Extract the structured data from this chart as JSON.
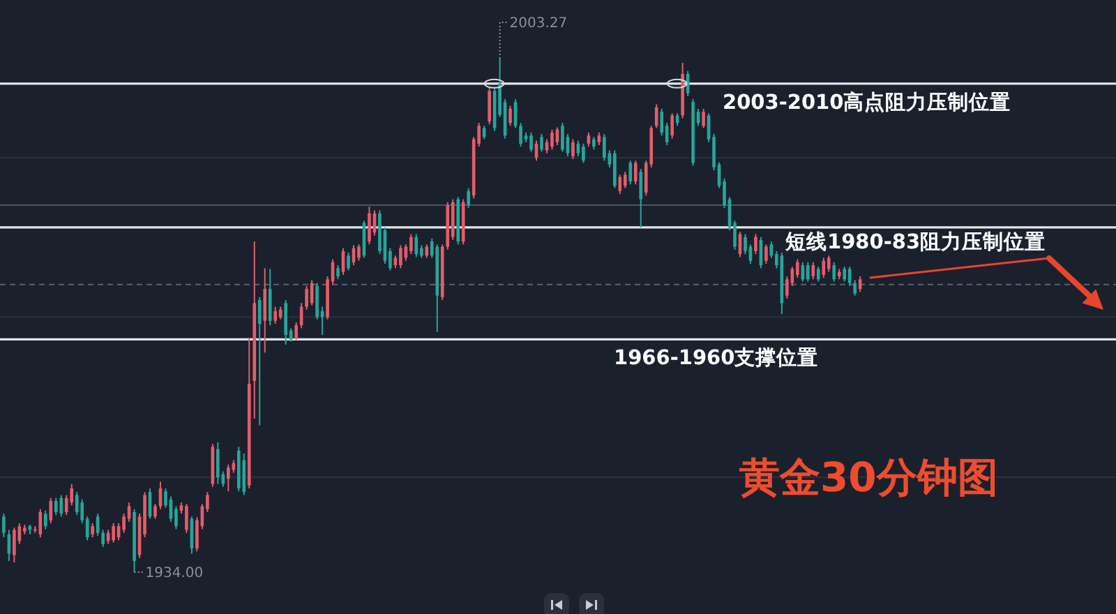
{
  "chart_data": {
    "type": "candlestick",
    "title": "黄金30分钟图",
    "categories": [
      null,
      null,
      null,
      null,
      null,
      null,
      null,
      null,
      null,
      null,
      null,
      null,
      null,
      null,
      null,
      null,
      null,
      null,
      null,
      null,
      null,
      null,
      null,
      null,
      null,
      null,
      null,
      null,
      null,
      null,
      null,
      null,
      null,
      null,
      null,
      null,
      null,
      null,
      null,
      null,
      null,
      null,
      null,
      null,
      null,
      null,
      null,
      null,
      null,
      null,
      null,
      null,
      null,
      null,
      null,
      null,
      null,
      null,
      null,
      null,
      null,
      null,
      null,
      null,
      null,
      null,
      null,
      null,
      null,
      null,
      null,
      null,
      null,
      null,
      null,
      null,
      null,
      null,
      null,
      null,
      null,
      null,
      null,
      null,
      null,
      null,
      null,
      null,
      null,
      null,
      null,
      null,
      null,
      null,
      null,
      null,
      null,
      null,
      null,
      null,
      null,
      null,
      null,
      null,
      null,
      null,
      null,
      null,
      null,
      null,
      null,
      null,
      null,
      null,
      null,
      null,
      null,
      null,
      null,
      null,
      null,
      null,
      null,
      null,
      null,
      null,
      null,
      null,
      null,
      null,
      null,
      null,
      null,
      null,
      null,
      null,
      null,
      null,
      null,
      null,
      null,
      null,
      null,
      null,
      null,
      null,
      null,
      null,
      null,
      null,
      null,
      null,
      null,
      null,
      null,
      null,
      null,
      null,
      null,
      null,
      null,
      null,
      null,
      null,
      null
    ],
    "ohlc": [
      [
        1941.5,
        1941.9,
        1938.7,
        1939.3
      ],
      [
        1939.1,
        1939.7,
        1935.5,
        1936.5
      ],
      [
        1936.3,
        1940.0,
        1935.3,
        1939.7
      ],
      [
        1938.2,
        1940.6,
        1937.8,
        1940.2
      ],
      [
        1939.5,
        1940.4,
        1939.1,
        1940.0
      ],
      [
        1940.2,
        1940.4,
        1939.1,
        1939.7
      ],
      [
        1939.7,
        1940.2,
        1939.3,
        1939.8
      ],
      [
        1939.1,
        1942.5,
        1938.7,
        1942.1
      ],
      [
        1941.9,
        1942.3,
        1939.8,
        1940.2
      ],
      [
        1941.0,
        1944.0,
        1940.6,
        1943.6
      ],
      [
        1943.6,
        1944.0,
        1941.7,
        1942.1
      ],
      [
        1944.0,
        1944.4,
        1941.5,
        1941.9
      ],
      [
        1942.1,
        1944.4,
        1941.7,
        1944.0
      ],
      [
        1943.4,
        1945.9,
        1943.0,
        1945.3
      ],
      [
        1944.4,
        1944.8,
        1941.7,
        1942.1
      ],
      [
        1943.4,
        1943.8,
        1940.6,
        1941.0
      ],
      [
        1941.2,
        1941.5,
        1938.3,
        1938.7
      ],
      [
        1939.1,
        1940.6,
        1938.7,
        1940.2
      ],
      [
        1941.5,
        1941.9,
        1938.9,
        1939.3
      ],
      [
        1939.3,
        1939.7,
        1937.4,
        1937.8
      ],
      [
        1938.2,
        1939.7,
        1937.8,
        1939.3
      ],
      [
        1938.3,
        1940.6,
        1938.0,
        1940.2
      ],
      [
        1938.7,
        1940.6,
        1938.3,
        1940.2
      ],
      [
        1939.7,
        1941.9,
        1939.3,
        1941.5
      ],
      [
        1941.2,
        1943.4,
        1940.8,
        1942.9
      ],
      [
        1942.1,
        1942.5,
        1934.0,
        1935.5
      ],
      [
        1936.3,
        1941.9,
        1935.9,
        1941.5
      ],
      [
        1939.1,
        1944.8,
        1938.7,
        1944.4
      ],
      [
        1944.8,
        1945.3,
        1941.2,
        1941.5
      ],
      [
        1941.5,
        1943.2,
        1941.2,
        1942.9
      ],
      [
        1942.9,
        1946.2,
        1942.5,
        1945.3
      ],
      [
        1944.9,
        1945.3,
        1942.7,
        1943.0
      ],
      [
        1943.8,
        1944.2,
        1940.8,
        1941.2
      ],
      [
        1942.5,
        1942.9,
        1939.8,
        1940.2
      ],
      [
        1942.3,
        1943.4,
        1941.9,
        1943.0
      ],
      [
        1939.7,
        1943.2,
        1939.3,
        1942.9
      ],
      [
        1941.2,
        1941.5,
        1936.5,
        1937.2
      ],
      [
        1937.2,
        1941.4,
        1936.8,
        1941.0
      ],
      [
        1940.2,
        1943.2,
        1939.8,
        1942.9
      ],
      [
        1942.5,
        1944.8,
        1942.1,
        1944.4
      ],
      [
        1945.9,
        1951.3,
        1945.5,
        1950.9
      ],
      [
        1950.6,
        1951.5,
        1945.9,
        1946.8
      ],
      [
        1947.2,
        1947.6,
        1945.5,
        1945.9
      ],
      [
        1946.6,
        1948.5,
        1944.9,
        1948.1
      ],
      [
        1947.8,
        1949.1,
        1947.4,
        1948.7
      ],
      [
        1950.4,
        1950.9,
        1944.9,
        1945.3
      ],
      [
        1949.1,
        1950.0,
        1944.4,
        1944.8
      ],
      [
        1945.7,
        1965.6,
        1945.3,
        1959.4
      ],
      [
        1959.8,
        1978.6,
        1954.7,
        1970.3
      ],
      [
        1970.7,
        1971.1,
        1953.8,
        1967.5
      ],
      [
        1967.9,
        1975.0,
        1963.6,
        1972.2
      ],
      [
        1972.2,
        1974.9,
        1967.3,
        1967.9
      ],
      [
        1967.9,
        1969.8,
        1967.5,
        1969.2
      ],
      [
        1968.4,
        1969.8,
        1968.1,
        1969.4
      ],
      [
        1970.3,
        1970.7,
        1964.7,
        1966.0
      ],
      [
        1966.6,
        1966.9,
        1965.1,
        1965.4
      ],
      [
        1965.6,
        1967.7,
        1965.3,
        1967.3
      ],
      [
        1967.3,
        1970.3,
        1966.9,
        1969.8
      ],
      [
        1969.8,
        1972.6,
        1969.4,
        1972.2
      ],
      [
        1970.3,
        1973.4,
        1970.0,
        1973.0
      ],
      [
        1972.6,
        1973.0,
        1968.1,
        1968.4
      ],
      [
        1969.2,
        1969.8,
        1966.0,
        1968.4
      ],
      [
        1968.4,
        1973.9,
        1968.1,
        1973.5
      ],
      [
        1973.2,
        1976.2,
        1972.8,
        1975.8
      ],
      [
        1975.0,
        1975.4,
        1973.5,
        1973.9
      ],
      [
        1974.5,
        1977.7,
        1974.1,
        1977.3
      ],
      [
        1976.7,
        1977.1,
        1974.7,
        1975.0
      ],
      [
        1975.8,
        1978.1,
        1975.4,
        1977.7
      ],
      [
        1976.4,
        1978.2,
        1976.0,
        1977.9
      ],
      [
        1981.1,
        1981.4,
        1976.4,
        1976.7
      ],
      [
        1978.6,
        1983.3,
        1978.2,
        1982.4
      ],
      [
        1979.8,
        1982.8,
        1979.4,
        1982.4
      ],
      [
        1982.4,
        1982.8,
        1976.9,
        1977.3
      ],
      [
        1980.1,
        1980.5,
        1975.6,
        1976.0
      ],
      [
        1977.3,
        1977.7,
        1974.7,
        1975.0
      ],
      [
        1975.4,
        1976.7,
        1975.0,
        1976.4
      ],
      [
        1975.4,
        1978.1,
        1975.0,
        1977.7
      ],
      [
        1976.4,
        1978.2,
        1976.0,
        1977.9
      ],
      [
        1977.3,
        1979.6,
        1976.9,
        1979.2
      ],
      [
        1979.2,
        1979.6,
        1976.5,
        1976.9
      ],
      [
        1977.7,
        1978.1,
        1976.4,
        1976.7
      ],
      [
        1976.7,
        1978.2,
        1976.4,
        1977.9
      ],
      [
        1978.6,
        1979.0,
        1976.4,
        1976.7
      ],
      [
        1977.9,
        1978.2,
        1966.4,
        1971.3
      ],
      [
        1971.1,
        1978.2,
        1970.7,
        1977.9
      ],
      [
        1977.9,
        1983.9,
        1977.5,
        1983.5
      ],
      [
        1979.2,
        1984.3,
        1978.8,
        1983.9
      ],
      [
        1984.3,
        1984.6,
        1978.2,
        1978.6
      ],
      [
        1978.6,
        1984.3,
        1978.2,
        1983.9
      ],
      [
        1985.4,
        1985.8,
        1983.1,
        1983.5
      ],
      [
        1984.8,
        1992.7,
        1984.4,
        1992.4
      ],
      [
        1991.8,
        1994.6,
        1991.4,
        1994.2
      ],
      [
        1993.9,
        1994.2,
        1992.4,
        1992.7
      ],
      [
        1994.8,
        1999.5,
        1994.4,
        1998.9
      ],
      [
        1998.9,
        1999.3,
        1993.5,
        1993.9
      ],
      [
        1999.9,
        2003.27,
        1995.4,
        1995.7
      ],
      [
        1997.4,
        1997.8,
        1992.5,
        1992.9
      ],
      [
        1994.6,
        1996.9,
        1994.2,
        1996.5
      ],
      [
        1997.4,
        1997.8,
        1993.9,
        1994.2
      ],
      [
        1994.2,
        1994.6,
        1991.4,
        1991.8
      ],
      [
        1992.9,
        1993.3,
        1992.0,
        1992.4
      ],
      [
        1992.9,
        1993.3,
        1990.7,
        1991.0
      ],
      [
        1989.9,
        1992.2,
        1989.5,
        1991.8
      ],
      [
        1992.7,
        1993.1,
        1990.7,
        1991.0
      ],
      [
        1990.9,
        1992.4,
        1990.5,
        1992.0
      ],
      [
        1991.4,
        1993.7,
        1991.0,
        1993.3
      ],
      [
        1992.0,
        1994.0,
        1991.6,
        1993.7
      ],
      [
        1994.2,
        1994.6,
        1990.7,
        1991.0
      ],
      [
        1992.7,
        1993.1,
        1990.1,
        1990.5
      ],
      [
        1990.1,
        1992.4,
        1989.7,
        1992.0
      ],
      [
        1991.8,
        1992.2,
        1990.1,
        1990.5
      ],
      [
        1991.4,
        1991.8,
        1989.2,
        1989.5
      ],
      [
        1991.8,
        1993.3,
        1991.4,
        1992.9
      ],
      [
        1992.4,
        1992.7,
        1991.0,
        1991.4
      ],
      [
        1992.0,
        1993.3,
        1991.6,
        1992.9
      ],
      [
        1992.7,
        1993.1,
        1989.5,
        1989.9
      ],
      [
        1990.5,
        1990.9,
        1988.6,
        1989.0
      ],
      [
        1990.5,
        1990.9,
        1985.8,
        1986.1
      ],
      [
        1985.4,
        1987.6,
        1985.0,
        1987.3
      ],
      [
        1986.1,
        1988.0,
        1985.8,
        1987.6
      ],
      [
        1989.2,
        1989.5,
        1986.3,
        1986.7
      ],
      [
        1986.7,
        1989.5,
        1986.3,
        1989.2
      ],
      [
        1988.0,
        1988.4,
        1980.5,
        1984.3
      ],
      [
        1985.2,
        1989.5,
        1984.8,
        1989.2
      ],
      [
        1989.0,
        1994.2,
        1988.6,
        1993.9
      ],
      [
        1994.2,
        1997.1,
        1993.9,
        1996.7
      ],
      [
        1996.1,
        1996.5,
        1992.9,
        1993.3
      ],
      [
        1994.2,
        1994.6,
        1991.6,
        1992.0
      ],
      [
        1992.9,
        1995.9,
        1992.5,
        1995.6
      ],
      [
        1995.6,
        1995.9,
        1994.2,
        1994.6
      ],
      [
        1995.6,
        2002.7,
        1995.2,
        2001.2
      ],
      [
        2001.2,
        2001.6,
        1998.2,
        1998.6
      ],
      [
        1997.4,
        1997.8,
        1988.8,
        1989.2
      ],
      [
        1996.1,
        1996.5,
        1994.2,
        1994.6
      ],
      [
        1994.2,
        1996.5,
        1993.9,
        1996.1
      ],
      [
        1995.6,
        1995.9,
        1992.0,
        1992.4
      ],
      [
        1992.7,
        1993.1,
        1988.2,
        1988.6
      ],
      [
        1989.0,
        1989.3,
        1985.8,
        1986.1
      ],
      [
        1986.7,
        1987.1,
        1983.1,
        1983.5
      ],
      [
        1984.3,
        1984.6,
        1980.1,
        1980.5
      ],
      [
        1981.1,
        1981.4,
        1977.5,
        1977.9
      ],
      [
        1976.9,
        1979.9,
        1976.5,
        1979.6
      ],
      [
        1979.2,
        1979.6,
        1976.9,
        1977.3
      ],
      [
        1977.9,
        1978.2,
        1975.6,
        1976.0
      ],
      [
        1977.3,
        1979.6,
        1976.9,
        1979.2
      ],
      [
        1978.8,
        1979.2,
        1975.0,
        1975.4
      ],
      [
        1976.0,
        1978.2,
        1975.6,
        1977.9
      ],
      [
        1978.2,
        1978.6,
        1976.4,
        1976.7
      ],
      [
        1976.9,
        1977.3,
        1975.0,
        1975.4
      ],
      [
        1976.7,
        1977.1,
        1968.8,
        1970.3
      ],
      [
        1971.3,
        1973.9,
        1970.9,
        1973.5
      ],
      [
        1973.0,
        1975.2,
        1972.6,
        1974.9
      ],
      [
        1974.1,
        1976.2,
        1973.7,
        1975.8
      ],
      [
        1975.4,
        1975.8,
        1973.2,
        1973.5
      ],
      [
        1975.4,
        1975.8,
        1973.2,
        1973.5
      ],
      [
        1973.9,
        1975.8,
        1973.5,
        1975.4
      ],
      [
        1974.9,
        1975.2,
        1973.2,
        1973.5
      ],
      [
        1974.1,
        1976.4,
        1973.7,
        1976.0
      ],
      [
        1974.9,
        1976.7,
        1974.5,
        1976.4
      ],
      [
        1975.4,
        1975.8,
        1973.2,
        1973.5
      ],
      [
        1973.9,
        1974.9,
        1973.5,
        1974.5
      ],
      [
        1974.9,
        1975.2,
        1973.2,
        1973.5
      ],
      [
        1974.9,
        1975.2,
        1972.6,
        1973.0
      ],
      [
        1973.0,
        1973.4,
        1971.3,
        1971.6
      ],
      [
        1972.2,
        1973.9,
        1971.8,
        1973.5
      ]
    ],
    "annotations": [
      "2003.27",
      "1934.00"
    ],
    "ref_lines": [
      {
        "axis": "y",
        "value": 1999.9,
        "label": "2003-2010高点阻力压制位置",
        "color": "#e4e6ea"
      },
      {
        "axis": "y",
        "value": 1980.5,
        "label": "短线1980-83阻力压制位置",
        "color": "#e4e6ea"
      },
      {
        "axis": "y",
        "value": 1965.4,
        "label": "1966-1960支撑位置",
        "color": "#e4e6ea"
      },
      {
        "axis": "y",
        "value": 1983.5,
        "color": "#4e5462"
      },
      {
        "axis": "y",
        "value": 1972.8,
        "color": "#5c6270",
        "line_style": "dashed"
      }
    ],
    "grid": "y",
    "yticks": [
      {
        "value": 1989.9,
        "label": null
      },
      {
        "value": 1968.4,
        "label": null
      },
      {
        "value": 1946.8,
        "label": null
      }
    ]
  }
}
